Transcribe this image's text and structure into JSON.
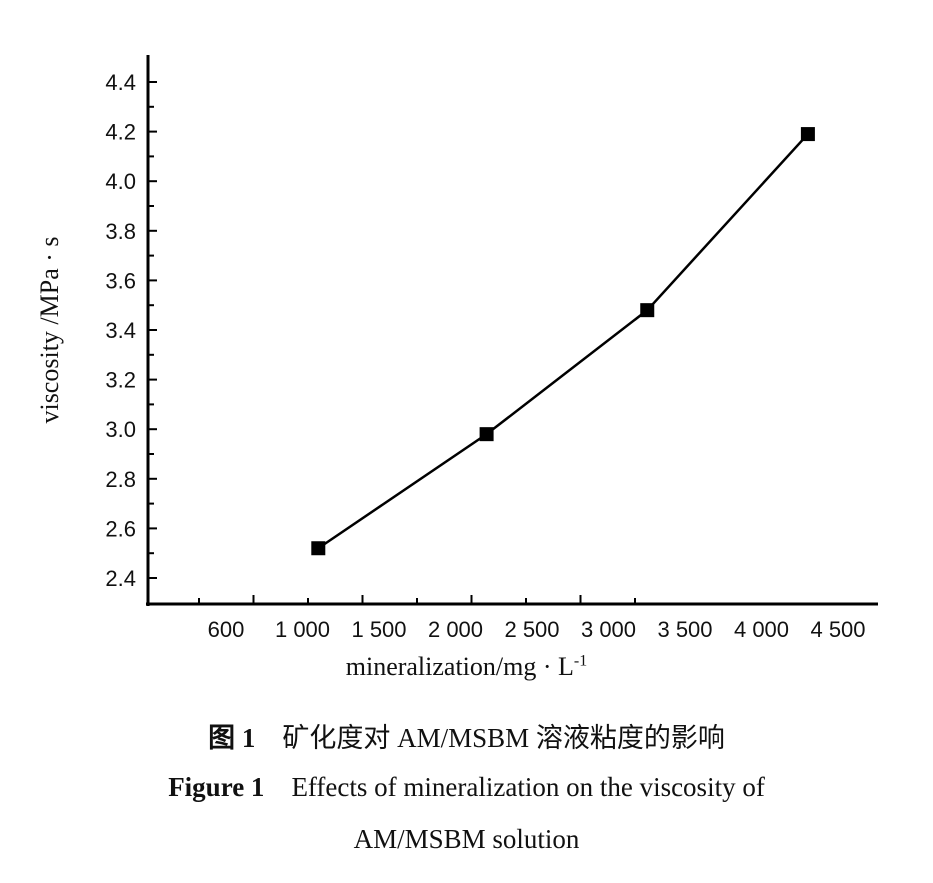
{
  "chart_data": {
    "type": "line",
    "title": "",
    "xlabel": "mineralization/mg · L",
    "xlabel_superscript": "-1",
    "ylabel": "viscosity /MPa · s",
    "x_tick_labels": [
      "600",
      "1 000",
      "1 500",
      "2 000",
      "2 500",
      "3 000",
      "3 500",
      "4 000",
      "4 500"
    ],
    "y_tick_labels": [
      "2.4",
      "2.6",
      "2.8",
      "3.0",
      "3.2",
      "3.4",
      "3.6",
      "3.8",
      "4.0",
      "4.2",
      "4.4"
    ],
    "ylim": [
      2.4,
      4.4
    ],
    "grid": false,
    "marker": "square",
    "color": "#000000",
    "x": [
      1100,
      2200,
      3250,
      4300
    ],
    "y": [
      2.52,
      2.98,
      3.48,
      4.19
    ]
  },
  "caption": {
    "cn_label": "图 1",
    "cn_text": "矿化度对 AM/MSBM 溶液粘度的影响",
    "en_label": "Figure 1",
    "en_text_line1": "Effects of mineralization on the viscosity of",
    "en_text_line2": "AM/MSBM solution"
  }
}
